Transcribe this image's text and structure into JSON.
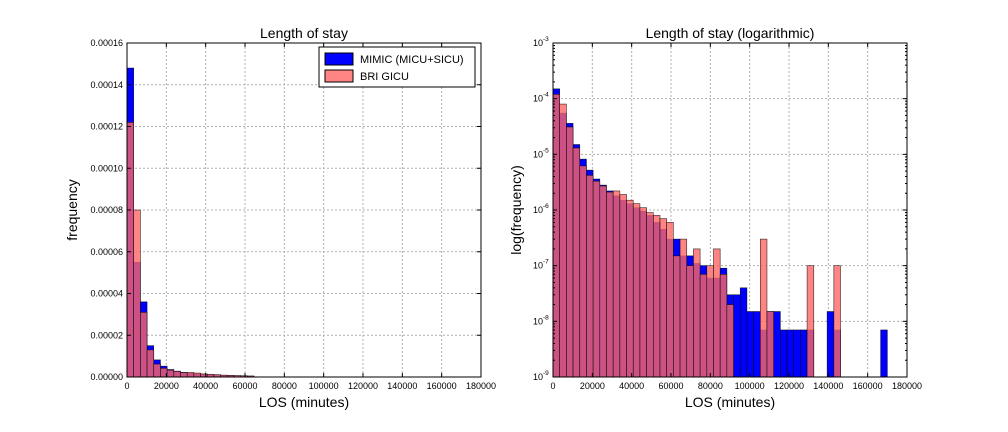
{
  "chart_data": [
    {
      "type": "bar",
      "title": "Length of stay",
      "xlabel": "LOS (minutes)",
      "ylabel": "frequency",
      "xlim": [
        0,
        180000
      ],
      "ylim": [
        0,
        0.00016
      ],
      "grid": true,
      "legend_position": "top-right",
      "bin_width": 3400,
      "x_tick_labels": [
        "0",
        "20000",
        "40000",
        "60000",
        "80000",
        "100000",
        "120000",
        "140000",
        "160000",
        "180000"
      ],
      "y_tick_labels": [
        "0.00000",
        "0.00002",
        "0.00004",
        "0.00006",
        "0.00008",
        "0.00010",
        "0.00012",
        "0.00014",
        "0.00016"
      ],
      "series": [
        {
          "name": "MIMIC (MICU+SICU)",
          "color": "#0000ff",
          "bin_starts": [
            0,
            3400,
            6800,
            10200,
            13600,
            17000,
            20400,
            23800,
            27200,
            30600,
            34000,
            37400,
            40800,
            44200,
            47600,
            51000,
            54400,
            57800,
            61200
          ],
          "values": [
            0.000148,
            5.5e-05,
            3.6e-05,
            1.5e-05,
            8.2e-06,
            5.2e-06,
            3.6e-06,
            2.8e-06,
            2.2e-06,
            1.8e-06,
            1.5e-06,
            1.3e-06,
            1.1e-06,
            9.5e-07,
            8e-07,
            7e-07,
            6e-07,
            5e-07,
            4e-07
          ]
        },
        {
          "name": "BRI GICU",
          "color": "#ff6666",
          "bin_starts": [
            0,
            3400,
            6800,
            10200,
            13600,
            17000,
            20400,
            23800,
            27200,
            30600,
            34000,
            37400,
            40800,
            44200,
            47600,
            51000,
            54400,
            57800,
            61200
          ],
          "values": [
            0.000122,
            8e-05,
            3.1e-05,
            1.3e-05,
            6.2e-06,
            4.2e-06,
            3.3e-06,
            2.7e-06,
            2.1e-06,
            2.2e-06,
            1.9e-06,
            1.5e-06,
            1.3e-06,
            1.1e-06,
            9e-07,
            8e-07,
            7e-07,
            6e-07,
            5e-07
          ]
        }
      ]
    },
    {
      "type": "bar",
      "title": "Length of stay (logarithmic)",
      "xlabel": "LOS (minutes)",
      "ylabel": "log(frequency)",
      "xlim": [
        0,
        180000
      ],
      "ylim": [
        1e-09,
        0.001
      ],
      "y_scale": "log",
      "grid": true,
      "bin_width": 3400,
      "x_tick_labels": [
        "0",
        "20000",
        "40000",
        "60000",
        "80000",
        "100000",
        "120000",
        "140000",
        "160000",
        "180000"
      ],
      "y_ticks": [
        {
          "base": "10",
          "exp": "-9"
        },
        {
          "base": "10",
          "exp": "-8"
        },
        {
          "base": "10",
          "exp": "-7"
        },
        {
          "base": "10",
          "exp": "-6"
        },
        {
          "base": "10",
          "exp": "-5"
        },
        {
          "base": "10",
          "exp": "-4"
        },
        {
          "base": "10",
          "exp": "-3"
        }
      ],
      "series": [
        {
          "name": "MIMIC (MICU+SICU)",
          "color": "#0000ff",
          "bin_starts": [
            0,
            3400,
            6800,
            10200,
            13600,
            17000,
            20400,
            23800,
            27200,
            30600,
            34000,
            37400,
            40800,
            44200,
            47600,
            51000,
            54400,
            57800,
            61200,
            64600,
            68000,
            71400,
            74800,
            78200,
            81600,
            85000,
            88400,
            91800,
            95200,
            98600,
            102000,
            105400,
            108800,
            112200,
            115600,
            119000,
            122400,
            125800,
            129200,
            132600,
            136000,
            139400,
            142800,
            146200,
            149600,
            153000,
            156400,
            159800,
            163200,
            166600
          ],
          "values": [
            0.00015,
            5.5e-05,
            3.6e-05,
            1.5e-05,
            8.2e-06,
            5.2e-06,
            3.6e-06,
            2.8e-06,
            2.2e-06,
            1.8e-06,
            1.5e-06,
            1.3e-06,
            1.1e-06,
            9.5e-07,
            8e-07,
            6e-07,
            4.5e-07,
            3e-07,
            3e-07,
            1.5e-07,
            1.5e-07,
            1.1e-07,
            1e-07,
            6e-08,
            6e-08,
            9e-08,
            3e-08,
            3e-08,
            4e-08,
            1.5e-08,
            1.5e-08,
            7e-09,
            1.5e-08,
            1.5e-08,
            7e-09,
            7e-09,
            7e-09,
            7e-09,
            7e-09,
            0,
            0,
            1.5e-08,
            7e-09,
            0,
            0,
            0,
            0,
            0,
            0,
            7e-09
          ]
        },
        {
          "name": "BRI GICU",
          "color": "#ff6666",
          "bin_starts": [
            0,
            3400,
            6800,
            10200,
            13600,
            17000,
            20400,
            23800,
            27200,
            30600,
            34000,
            37400,
            40800,
            44200,
            47600,
            51000,
            54400,
            57800,
            61200,
            64600,
            68000,
            71400,
            74800,
            78200,
            81600,
            85000,
            88400,
            91800,
            95200,
            98600,
            102000,
            105400,
            108800,
            112200,
            115600,
            119000,
            122400,
            125800,
            129200,
            132600,
            136000,
            139400,
            142800,
            146200,
            149600,
            153000,
            156400,
            159800,
            163200,
            166600
          ],
          "values": [
            0.00012,
            8e-05,
            3.1e-05,
            1.3e-05,
            6.2e-06,
            4.2e-06,
            3.3e-06,
            2.7e-06,
            2.1e-06,
            2.2e-06,
            1.9e-06,
            1.5e-06,
            1.3e-06,
            1.1e-06,
            9e-07,
            8e-07,
            7e-07,
            6e-07,
            1.5e-07,
            3e-07,
            1e-07,
            2e-07,
            7e-08,
            1e-07,
            2e-07,
            7e-08,
            2e-08,
            0,
            0,
            0,
            0,
            3e-07,
            1.5e-08,
            0,
            0,
            0,
            0,
            0,
            1e-07,
            0,
            0,
            0,
            1e-07,
            0,
            0,
            0,
            0,
            0,
            0,
            0
          ]
        }
      ]
    }
  ]
}
